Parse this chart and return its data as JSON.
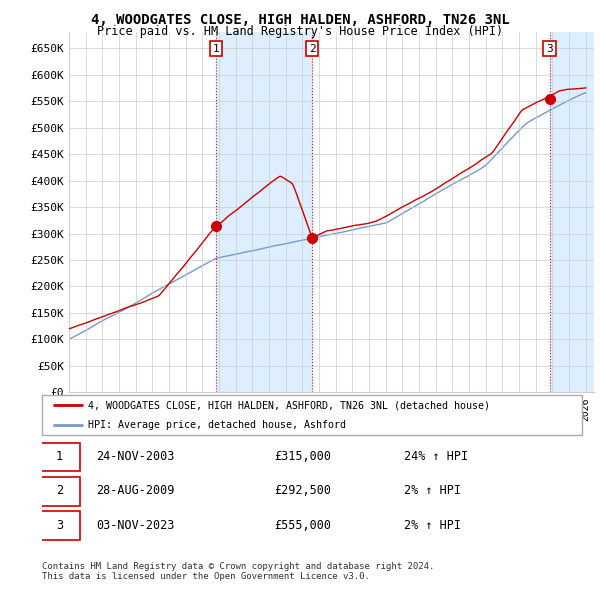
{
  "title": "4, WOODGATES CLOSE, HIGH HALDEN, ASHFORD, TN26 3NL",
  "subtitle": "Price paid vs. HM Land Registry's House Price Index (HPI)",
  "ylim": [
    0,
    680000
  ],
  "yticks": [
    0,
    50000,
    100000,
    150000,
    200000,
    250000,
    300000,
    350000,
    400000,
    450000,
    500000,
    550000,
    600000,
    650000
  ],
  "ytick_labels": [
    "£0",
    "£50K",
    "£100K",
    "£150K",
    "£200K",
    "£250K",
    "£300K",
    "£350K",
    "£400K",
    "£450K",
    "£500K",
    "£550K",
    "£600K",
    "£650K"
  ],
  "purchases": [
    {
      "date": "2003-11-24",
      "price": 315000,
      "label": "1",
      "hpi_pct": "24% ↑ HPI",
      "date_display": "24-NOV-2003"
    },
    {
      "date": "2009-08-28",
      "price": 292500,
      "label": "2",
      "hpi_pct": "2% ↑ HPI",
      "date_display": "28-AUG-2009"
    },
    {
      "date": "2023-11-03",
      "price": 555000,
      "label": "3",
      "hpi_pct": "2% ↑ HPI",
      "date_display": "03-NOV-2023"
    }
  ],
  "legend_property_label": "4, WOODGATES CLOSE, HIGH HALDEN, ASHFORD, TN26 3NL (detached house)",
  "legend_hpi_label": "HPI: Average price, detached house, Ashford",
  "footer": "Contains HM Land Registry data © Crown copyright and database right 2024.\nThis data is licensed under the Open Government Licence v3.0.",
  "property_color": "#cc0000",
  "hpi_color": "#7799cc",
  "shade_color": "#ddeeff",
  "grid_color": "#cccccc",
  "label_box_color": "#cc0000",
  "xlim_start": 1995.0,
  "xlim_end": 2026.5
}
